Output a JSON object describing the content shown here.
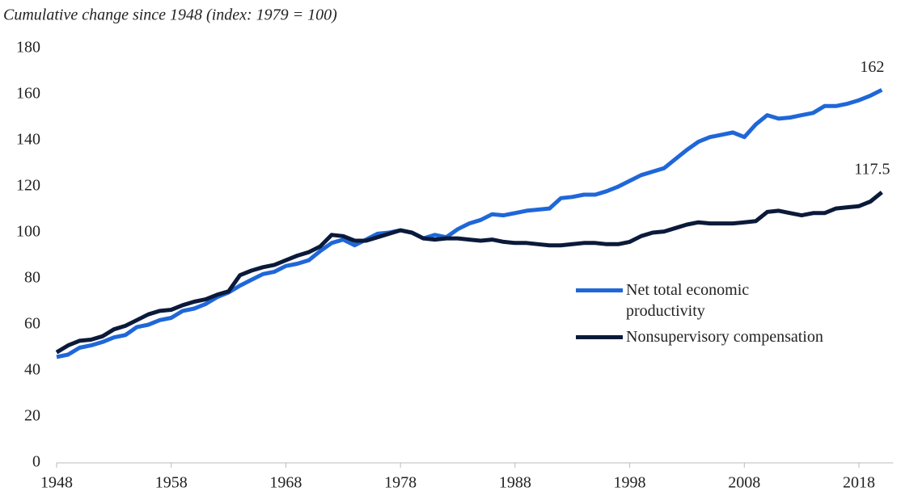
{
  "chart_data": {
    "type": "line",
    "subtitle": "Cumulative change since 1948 (index: 1979 = 100)",
    "x": [
      1948,
      1949,
      1950,
      1951,
      1952,
      1953,
      1954,
      1955,
      1956,
      1957,
      1958,
      1959,
      1960,
      1961,
      1962,
      1963,
      1964,
      1965,
      1966,
      1967,
      1968,
      1969,
      1970,
      1971,
      1972,
      1973,
      1974,
      1975,
      1976,
      1977,
      1978,
      1979,
      1980,
      1981,
      1982,
      1983,
      1984,
      1985,
      1986,
      1987,
      1988,
      1989,
      1990,
      1991,
      1992,
      1993,
      1994,
      1995,
      1996,
      1997,
      1998,
      1999,
      2000,
      2001,
      2002,
      2003,
      2004,
      2005,
      2006,
      2007,
      2008,
      2009,
      2010,
      2011,
      2012,
      2013,
      2014,
      2015,
      2016,
      2017,
      2018,
      2019,
      2020
    ],
    "series": [
      {
        "name": "Net total economic productivity",
        "color": "#1f67d9",
        "values": [
          46,
          47,
          50,
          51,
          52.5,
          54.5,
          55.5,
          59,
          60,
          62,
          63,
          66,
          67,
          69,
          72,
          74,
          77,
          79.5,
          82,
          83,
          85.5,
          86.5,
          88,
          92,
          95.5,
          97,
          94.5,
          97,
          99.5,
          100,
          101,
          100,
          97.5,
          99,
          98,
          101.5,
          104,
          105.5,
          108,
          107.5,
          108.5,
          109.5,
          110,
          110.5,
          115,
          115.5,
          116.5,
          116.5,
          118,
          120,
          122.5,
          125,
          126.5,
          128,
          132,
          136,
          139.5,
          141.5,
          142.5,
          143.5,
          141.5,
          147,
          151,
          149.5,
          150,
          151,
          152,
          155,
          155,
          156,
          157.5,
          159.5,
          162
        ]
      },
      {
        "name": "Nonsupervisory compensation",
        "color": "#0b1a3a",
        "values": [
          48,
          51,
          53,
          53.5,
          55,
          58,
          59.5,
          62,
          64.5,
          66,
          66.5,
          68.5,
          70,
          71,
          73,
          74.5,
          81.5,
          83.5,
          85,
          86,
          88,
          90,
          91.5,
          94,
          99,
          98.5,
          96.5,
          96.5,
          98,
          99.5,
          101,
          100,
          97.5,
          97,
          97.5,
          97.5,
          97,
          96.5,
          97,
          96,
          95.5,
          95.5,
          95,
          94.5,
          94.5,
          95,
          95.5,
          95.5,
          95,
          95,
          96,
          98.5,
          100,
          100.5,
          102,
          103.5,
          104.5,
          104,
          104,
          104,
          104.5,
          105,
          109,
          109.5,
          108.5,
          107.5,
          108.5,
          108.5,
          110.5,
          111,
          111.5,
          113.5,
          117.5
        ]
      }
    ],
    "xlim": [
      1948,
      2021
    ],
    "xticks": [
      1948,
      1958,
      1968,
      1978,
      1988,
      1998,
      2008,
      2018
    ],
    "ylim": [
      0,
      180
    ],
    "yticks": [
      0,
      20,
      40,
      60,
      80,
      100,
      120,
      140,
      160,
      180
    ],
    "grid": false
  }
}
